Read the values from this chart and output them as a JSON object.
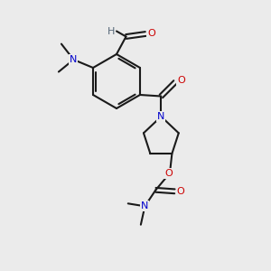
{
  "bg_color": "#ebebeb",
  "bond_color": "#1a1a1a",
  "bond_width": 1.5,
  "atom_colors": {
    "C": "#1a1a1a",
    "N": "#0000cc",
    "O": "#cc0000",
    "H": "#556677"
  },
  "font_size": 8.0,
  "fig_size": [
    3.0,
    3.0
  ],
  "dpi": 100,
  "xlim": [
    0,
    10
  ],
  "ylim": [
    0,
    10
  ]
}
